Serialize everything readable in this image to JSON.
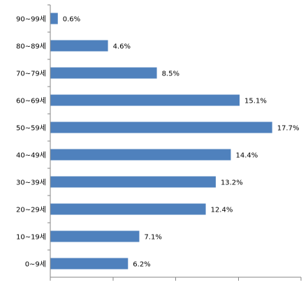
{
  "chart_data": {
    "type": "bar",
    "orientation": "horizontal",
    "categories": [
      "90~99세",
      "80~89세",
      "70~79세",
      "60~69세",
      "50~59세",
      "40~49세",
      "30~39세",
      "20~29세",
      "10~19세",
      "0~9세"
    ],
    "values": [
      0.6,
      4.6,
      8.5,
      15.1,
      17.7,
      14.4,
      13.2,
      12.4,
      7.1,
      6.2
    ],
    "value_labels": [
      "0.6%",
      "4.6%",
      "8.5%",
      "15.1%",
      "17.7%",
      "14.4%",
      "13.2%",
      "12.4%",
      "7.1%",
      "6.2%"
    ],
    "xlim": [
      0,
      20
    ],
    "x_tick_step": 5,
    "grid": false,
    "legend": "none",
    "bar_color": "#4F81BD"
  }
}
